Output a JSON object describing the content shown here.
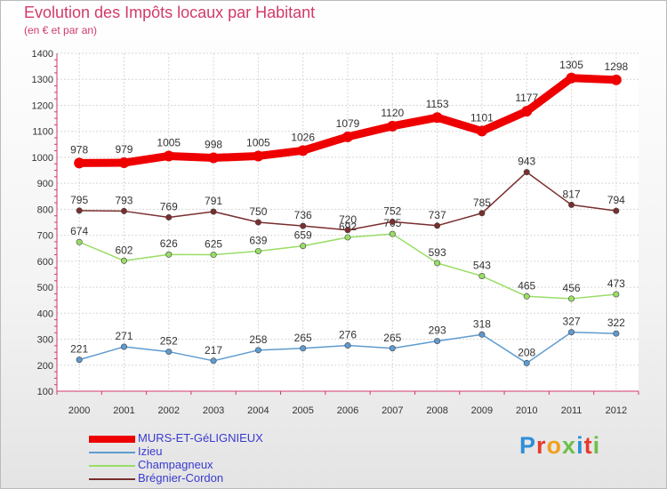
{
  "title": "Evolution des Impôts locaux par Habitant",
  "subtitle": "(en € et par an)",
  "logo": {
    "text": "Proxiti",
    "colors": [
      "#2f8fd8",
      "#e8392c",
      "#f2a01e",
      "#6cc04a",
      "#2f8fd8",
      "#e8392c",
      "#6cc04a"
    ]
  },
  "chart_data": {
    "type": "line",
    "title": "Evolution des Impôts locaux par Habitant",
    "subtitle": "(en € et par an)",
    "xlabel": "",
    "ylabel": "",
    "x": [
      "2000",
      "2001",
      "2002",
      "2003",
      "2004",
      "2005",
      "2006",
      "2007",
      "2008",
      "2009",
      "2010",
      "2011",
      "2012"
    ],
    "ylim": [
      100,
      1400
    ],
    "yticks": [
      "100",
      "200",
      "300",
      "400",
      "500",
      "600",
      "700",
      "800",
      "900",
      "1000",
      "1100",
      "1200",
      "1300",
      "1400"
    ],
    "grid": true,
    "legend_position": "bottom-left",
    "series": [
      {
        "name": "MURS-ET-GéLIGNIEUX",
        "color": "#ee0000",
        "values": [
          978,
          979,
          1005,
          998,
          1005,
          1026,
          1079,
          1120,
          1153,
          1101,
          1177,
          1305,
          1298
        ],
        "labels": [
          "978",
          "979",
          "1005",
          "998",
          "1005",
          "1026",
          "1079",
          "1120",
          "1153",
          "1101",
          "1177",
          "1305",
          "1298"
        ]
      },
      {
        "name": "Izieu",
        "color": "#5f9bd0",
        "values": [
          221,
          271,
          252,
          217,
          258,
          265,
          276,
          265,
          293,
          318,
          208,
          327,
          322
        ],
        "labels": [
          "221",
          "271",
          "252",
          "217",
          "258",
          "265",
          "276",
          "265",
          "293",
          "318",
          "208",
          "327",
          "322"
        ]
      },
      {
        "name": "Champagneux",
        "color": "#99dd66",
        "values": [
          674,
          602,
          626,
          625,
          639,
          659,
          692,
          705,
          593,
          543,
          465,
          456,
          473
        ],
        "labels": [
          "674",
          "602",
          "626",
          "625",
          "639",
          "659",
          "692",
          "705",
          "593",
          "543",
          "465",
          "456",
          "473"
        ]
      },
      {
        "name": "Brégnier-Cordon",
        "color": "#7a2e2e",
        "values": [
          795,
          793,
          769,
          791,
          750,
          736,
          720,
          752,
          737,
          785,
          943,
          817,
          794
        ],
        "labels": [
          "795",
          "793",
          "769",
          "791",
          "750",
          "736",
          "720",
          "752",
          "737",
          "785",
          "943",
          "817",
          "794"
        ]
      }
    ]
  }
}
